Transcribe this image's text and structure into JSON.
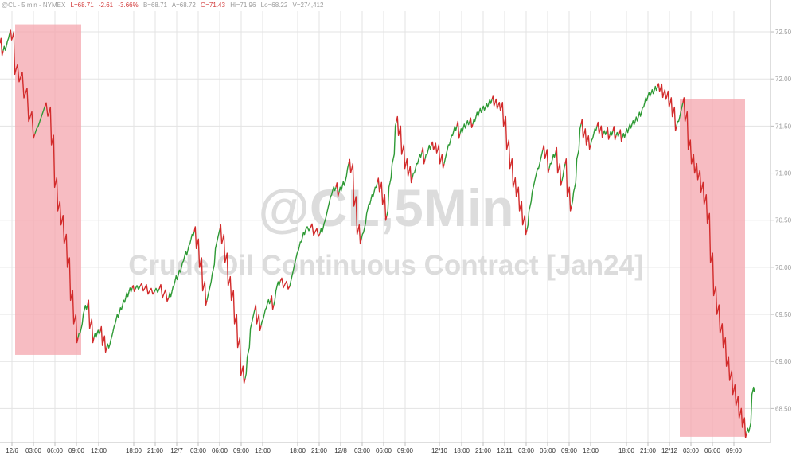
{
  "header": {
    "symbol": "@CL - 5 min - NYMEX",
    "last": "L=68.71",
    "change": "-2.61",
    "change_pct": "-3.66%",
    "bid": "B=68.71",
    "ask": "A=68.72",
    "open": "O=71.43",
    "high": "Hi=71.96",
    "low": "Lo=68.22",
    "volume": "V=274,412"
  },
  "watermark": {
    "line1": "@CL,5Min",
    "line2": "Crude Oil Continuous Contract [Jan24]"
  },
  "chart_data": {
    "type": "line",
    "series": [
      {
        "points": [
          [
            0,
            72.38
          ],
          [
            4,
            72.3
          ],
          [
            8,
            72.35
          ],
          [
            12,
            72.48
          ],
          [
            16,
            72.45
          ],
          [
            20,
            72.1
          ],
          [
            26,
            72.02
          ],
          [
            32,
            71.85
          ],
          [
            38,
            71.6
          ],
          [
            44,
            71.42
          ],
          [
            50,
            71.55
          ],
          [
            56,
            71.7
          ],
          [
            62,
            71.65
          ],
          [
            66,
            71.35
          ],
          [
            70,
            70.9
          ],
          [
            74,
            70.65
          ],
          [
            78,
            70.5
          ],
          [
            82,
            70.3
          ],
          [
            86,
            70.05
          ],
          [
            90,
            69.7
          ],
          [
            94,
            69.45
          ],
          [
            98,
            69.25
          ],
          [
            102,
            69.35
          ],
          [
            106,
            69.55
          ],
          [
            110,
            69.6
          ],
          [
            114,
            69.4
          ],
          [
            118,
            69.25
          ],
          [
            122,
            69.3
          ],
          [
            126,
            69.32
          ],
          [
            130,
            69.22
          ],
          [
            134,
            69.15
          ],
          [
            138,
            69.18
          ],
          [
            142,
            69.32
          ],
          [
            146,
            69.45
          ],
          [
            150,
            69.52
          ],
          [
            154,
            69.6
          ],
          [
            158,
            69.68
          ],
          [
            162,
            69.74
          ],
          [
            166,
            69.78
          ],
          [
            170,
            69.77
          ],
          [
            176,
            69.8
          ],
          [
            182,
            69.78
          ],
          [
            188,
            69.75
          ],
          [
            194,
            69.74
          ],
          [
            200,
            69.77
          ],
          [
            206,
            69.72
          ],
          [
            212,
            69.68
          ],
          [
            216,
            69.74
          ],
          [
            220,
            69.86
          ],
          [
            224,
            69.92
          ],
          [
            228,
            70.0
          ],
          [
            232,
            70.12
          ],
          [
            236,
            70.18
          ],
          [
            240,
            70.3
          ],
          [
            244,
            70.38
          ],
          [
            248,
            70.25
          ],
          [
            252,
            70.05
          ],
          [
            256,
            69.8
          ],
          [
            260,
            69.65
          ],
          [
            264,
            69.8
          ],
          [
            268,
            69.98
          ],
          [
            272,
            70.25
          ],
          [
            276,
            70.4
          ],
          [
            280,
            70.3
          ],
          [
            284,
            70.1
          ],
          [
            288,
            69.85
          ],
          [
            292,
            69.7
          ],
          [
            296,
            69.45
          ],
          [
            300,
            69.2
          ],
          [
            304,
            68.9
          ],
          [
            308,
            68.82
          ],
          [
            312,
            69.1
          ],
          [
            316,
            69.4
          ],
          [
            320,
            69.55
          ],
          [
            324,
            69.45
          ],
          [
            328,
            69.38
          ],
          [
            332,
            69.5
          ],
          [
            336,
            69.62
          ],
          [
            340,
            69.65
          ],
          [
            344,
            69.6
          ],
          [
            348,
            69.8
          ],
          [
            352,
            69.85
          ],
          [
            358,
            69.82
          ],
          [
            364,
            69.8
          ],
          [
            368,
            69.95
          ],
          [
            372,
            70.1
          ],
          [
            376,
            70.22
          ],
          [
            380,
            70.32
          ],
          [
            384,
            70.4
          ],
          [
            390,
            70.42
          ],
          [
            396,
            70.38
          ],
          [
            402,
            70.36
          ],
          [
            406,
            70.42
          ],
          [
            410,
            70.55
          ],
          [
            414,
            70.7
          ],
          [
            418,
            70.82
          ],
          [
            422,
            70.85
          ],
          [
            426,
            70.8
          ],
          [
            430,
            70.86
          ],
          [
            434,
            70.92
          ],
          [
            438,
            71.1
          ],
          [
            442,
            71.05
          ],
          [
            446,
            70.7
          ],
          [
            450,
            70.4
          ],
          [
            454,
            70.3
          ],
          [
            458,
            70.42
          ],
          [
            462,
            70.62
          ],
          [
            466,
            70.72
          ],
          [
            470,
            70.8
          ],
          [
            474,
            70.9
          ],
          [
            478,
            70.85
          ],
          [
            482,
            70.72
          ],
          [
            486,
            70.55
          ],
          [
            490,
            70.9
          ],
          [
            494,
            71.15
          ],
          [
            498,
            71.55
          ],
          [
            502,
            71.45
          ],
          [
            506,
            71.25
          ],
          [
            510,
            71.1
          ],
          [
            514,
            71.02
          ],
          [
            518,
            70.95
          ],
          [
            522,
            71.05
          ],
          [
            526,
            71.15
          ],
          [
            530,
            71.22
          ],
          [
            534,
            71.15
          ],
          [
            538,
            71.25
          ],
          [
            542,
            71.3
          ],
          [
            546,
            71.28
          ],
          [
            550,
            71.25
          ],
          [
            554,
            71.15
          ],
          [
            558,
            71.1
          ],
          [
            562,
            71.25
          ],
          [
            566,
            71.35
          ],
          [
            570,
            71.45
          ],
          [
            574,
            71.5
          ],
          [
            578,
            71.42
          ],
          [
            582,
            71.48
          ],
          [
            586,
            71.52
          ],
          [
            590,
            71.55
          ],
          [
            594,
            71.52
          ],
          [
            598,
            71.6
          ],
          [
            602,
            71.65
          ],
          [
            606,
            71.68
          ],
          [
            610,
            71.7
          ],
          [
            614,
            71.74
          ],
          [
            618,
            71.78
          ],
          [
            622,
            71.75
          ],
          [
            626,
            71.72
          ],
          [
            630,
            71.7
          ],
          [
            634,
            71.55
          ],
          [
            638,
            71.3
          ],
          [
            642,
            71.1
          ],
          [
            646,
            70.9
          ],
          [
            650,
            70.8
          ],
          [
            654,
            70.65
          ],
          [
            658,
            70.5
          ],
          [
            662,
            70.4
          ],
          [
            666,
            70.65
          ],
          [
            670,
            70.85
          ],
          [
            674,
            71.0
          ],
          [
            678,
            71.1
          ],
          [
            682,
            71.25
          ],
          [
            686,
            71.2
          ],
          [
            690,
            71.05
          ],
          [
            694,
            71.15
          ],
          [
            698,
            71.22
          ],
          [
            702,
            71.05
          ],
          [
            706,
            70.92
          ],
          [
            710,
            71.1
          ],
          [
            714,
            70.8
          ],
          [
            718,
            70.65
          ],
          [
            722,
            70.85
          ],
          [
            726,
            71.2
          ],
          [
            730,
            71.52
          ],
          [
            734,
            71.42
          ],
          [
            738,
            71.35
          ],
          [
            742,
            71.3
          ],
          [
            746,
            71.42
          ],
          [
            750,
            71.5
          ],
          [
            754,
            71.46
          ],
          [
            758,
            71.42
          ],
          [
            762,
            71.44
          ],
          [
            766,
            71.4
          ],
          [
            770,
            71.45
          ],
          [
            774,
            71.4
          ],
          [
            778,
            71.42
          ],
          [
            782,
            71.38
          ],
          [
            786,
            71.42
          ],
          [
            790,
            71.48
          ],
          [
            794,
            71.52
          ],
          [
            798,
            71.55
          ],
          [
            802,
            71.6
          ],
          [
            806,
            71.65
          ],
          [
            810,
            71.75
          ],
          [
            814,
            71.82
          ],
          [
            818,
            71.85
          ],
          [
            822,
            71.88
          ],
          [
            826,
            71.92
          ],
          [
            830,
            71.9
          ],
          [
            834,
            71.85
          ],
          [
            838,
            71.82
          ],
          [
            842,
            71.75
          ],
          [
            846,
            71.65
          ],
          [
            850,
            71.5
          ],
          [
            854,
            71.6
          ],
          [
            858,
            71.75
          ],
          [
            862,
            71.6
          ],
          [
            866,
            71.3
          ],
          [
            870,
            71.15
          ],
          [
            874,
            71.05
          ],
          [
            878,
            70.98
          ],
          [
            882,
            70.85
          ],
          [
            886,
            70.72
          ],
          [
            890,
            70.52
          ],
          [
            894,
            70.1
          ],
          [
            898,
            69.75
          ],
          [
            902,
            69.55
          ],
          [
            906,
            69.35
          ],
          [
            910,
            69.2
          ],
          [
            914,
            69.0
          ],
          [
            918,
            68.85
          ],
          [
            922,
            68.7
          ],
          [
            926,
            68.58
          ],
          [
            930,
            68.45
          ],
          [
            934,
            68.35
          ],
          [
            938,
            68.24
          ],
          [
            942,
            68.3
          ],
          [
            946,
            68.7
          ],
          [
            948,
            68.71
          ]
        ]
      }
    ],
    "x_ticks": [
      {
        "x": 15,
        "label": "12/6"
      },
      {
        "x": 42,
        "label": "03:00"
      },
      {
        "x": 69,
        "label": "06:00"
      },
      {
        "x": 96,
        "label": "09:00"
      },
      {
        "x": 124,
        "label": "12:00"
      },
      {
        "x": 168,
        "label": "18:00"
      },
      {
        "x": 195,
        "label": "21:00"
      },
      {
        "x": 222,
        "label": "12/7"
      },
      {
        "x": 249,
        "label": "03:00"
      },
      {
        "x": 276,
        "label": "06:00"
      },
      {
        "x": 303,
        "label": "09:00"
      },
      {
        "x": 330,
        "label": "12:00"
      },
      {
        "x": 374,
        "label": "18:00"
      },
      {
        "x": 401,
        "label": "21:00"
      },
      {
        "x": 428,
        "label": "12/8"
      },
      {
        "x": 455,
        "label": "03:00"
      },
      {
        "x": 482,
        "label": "06:00"
      },
      {
        "x": 509,
        "label": "09:00"
      },
      {
        "x": 552,
        "label": "12/10"
      },
      {
        "x": 580,
        "label": "18:00"
      },
      {
        "x": 607,
        "label": "21:00"
      },
      {
        "x": 634,
        "label": "12/11"
      },
      {
        "x": 661,
        "label": "03:00"
      },
      {
        "x": 688,
        "label": "06:00"
      },
      {
        "x": 715,
        "label": "09:00"
      },
      {
        "x": 742,
        "label": "12:00"
      },
      {
        "x": 787,
        "label": "18:00"
      },
      {
        "x": 814,
        "label": "21:00"
      },
      {
        "x": 841,
        "label": "12/12"
      },
      {
        "x": 868,
        "label": "03:00"
      },
      {
        "x": 895,
        "label": "06:00"
      },
      {
        "x": 922,
        "label": "09:00"
      }
    ],
    "x_range": [
      0,
      968
    ],
    "y_range": [
      68.14,
      72.72
    ],
    "y_ticks": [
      68.5,
      69.0,
      69.5,
      70.0,
      70.5,
      71.0,
      71.5,
      72.0,
      72.5
    ],
    "y_tick_labels": [
      "68.50",
      "69.00",
      "69.50",
      "70.00",
      "70.50",
      "71.00",
      "71.50",
      "72.00",
      "72.50"
    ],
    "highlights": [
      {
        "x0": 19,
        "x1": 102,
        "y0": 69.07,
        "y1": 72.58
      },
      {
        "x0": 854,
        "x1": 936,
        "y0": 68.2,
        "y1": 71.79
      }
    ],
    "colors": {
      "up": "#2e9a35",
      "down": "#d22b2b",
      "highlight": "#f4a6ae",
      "grid": "#e3e3e3"
    },
    "grid": true
  }
}
